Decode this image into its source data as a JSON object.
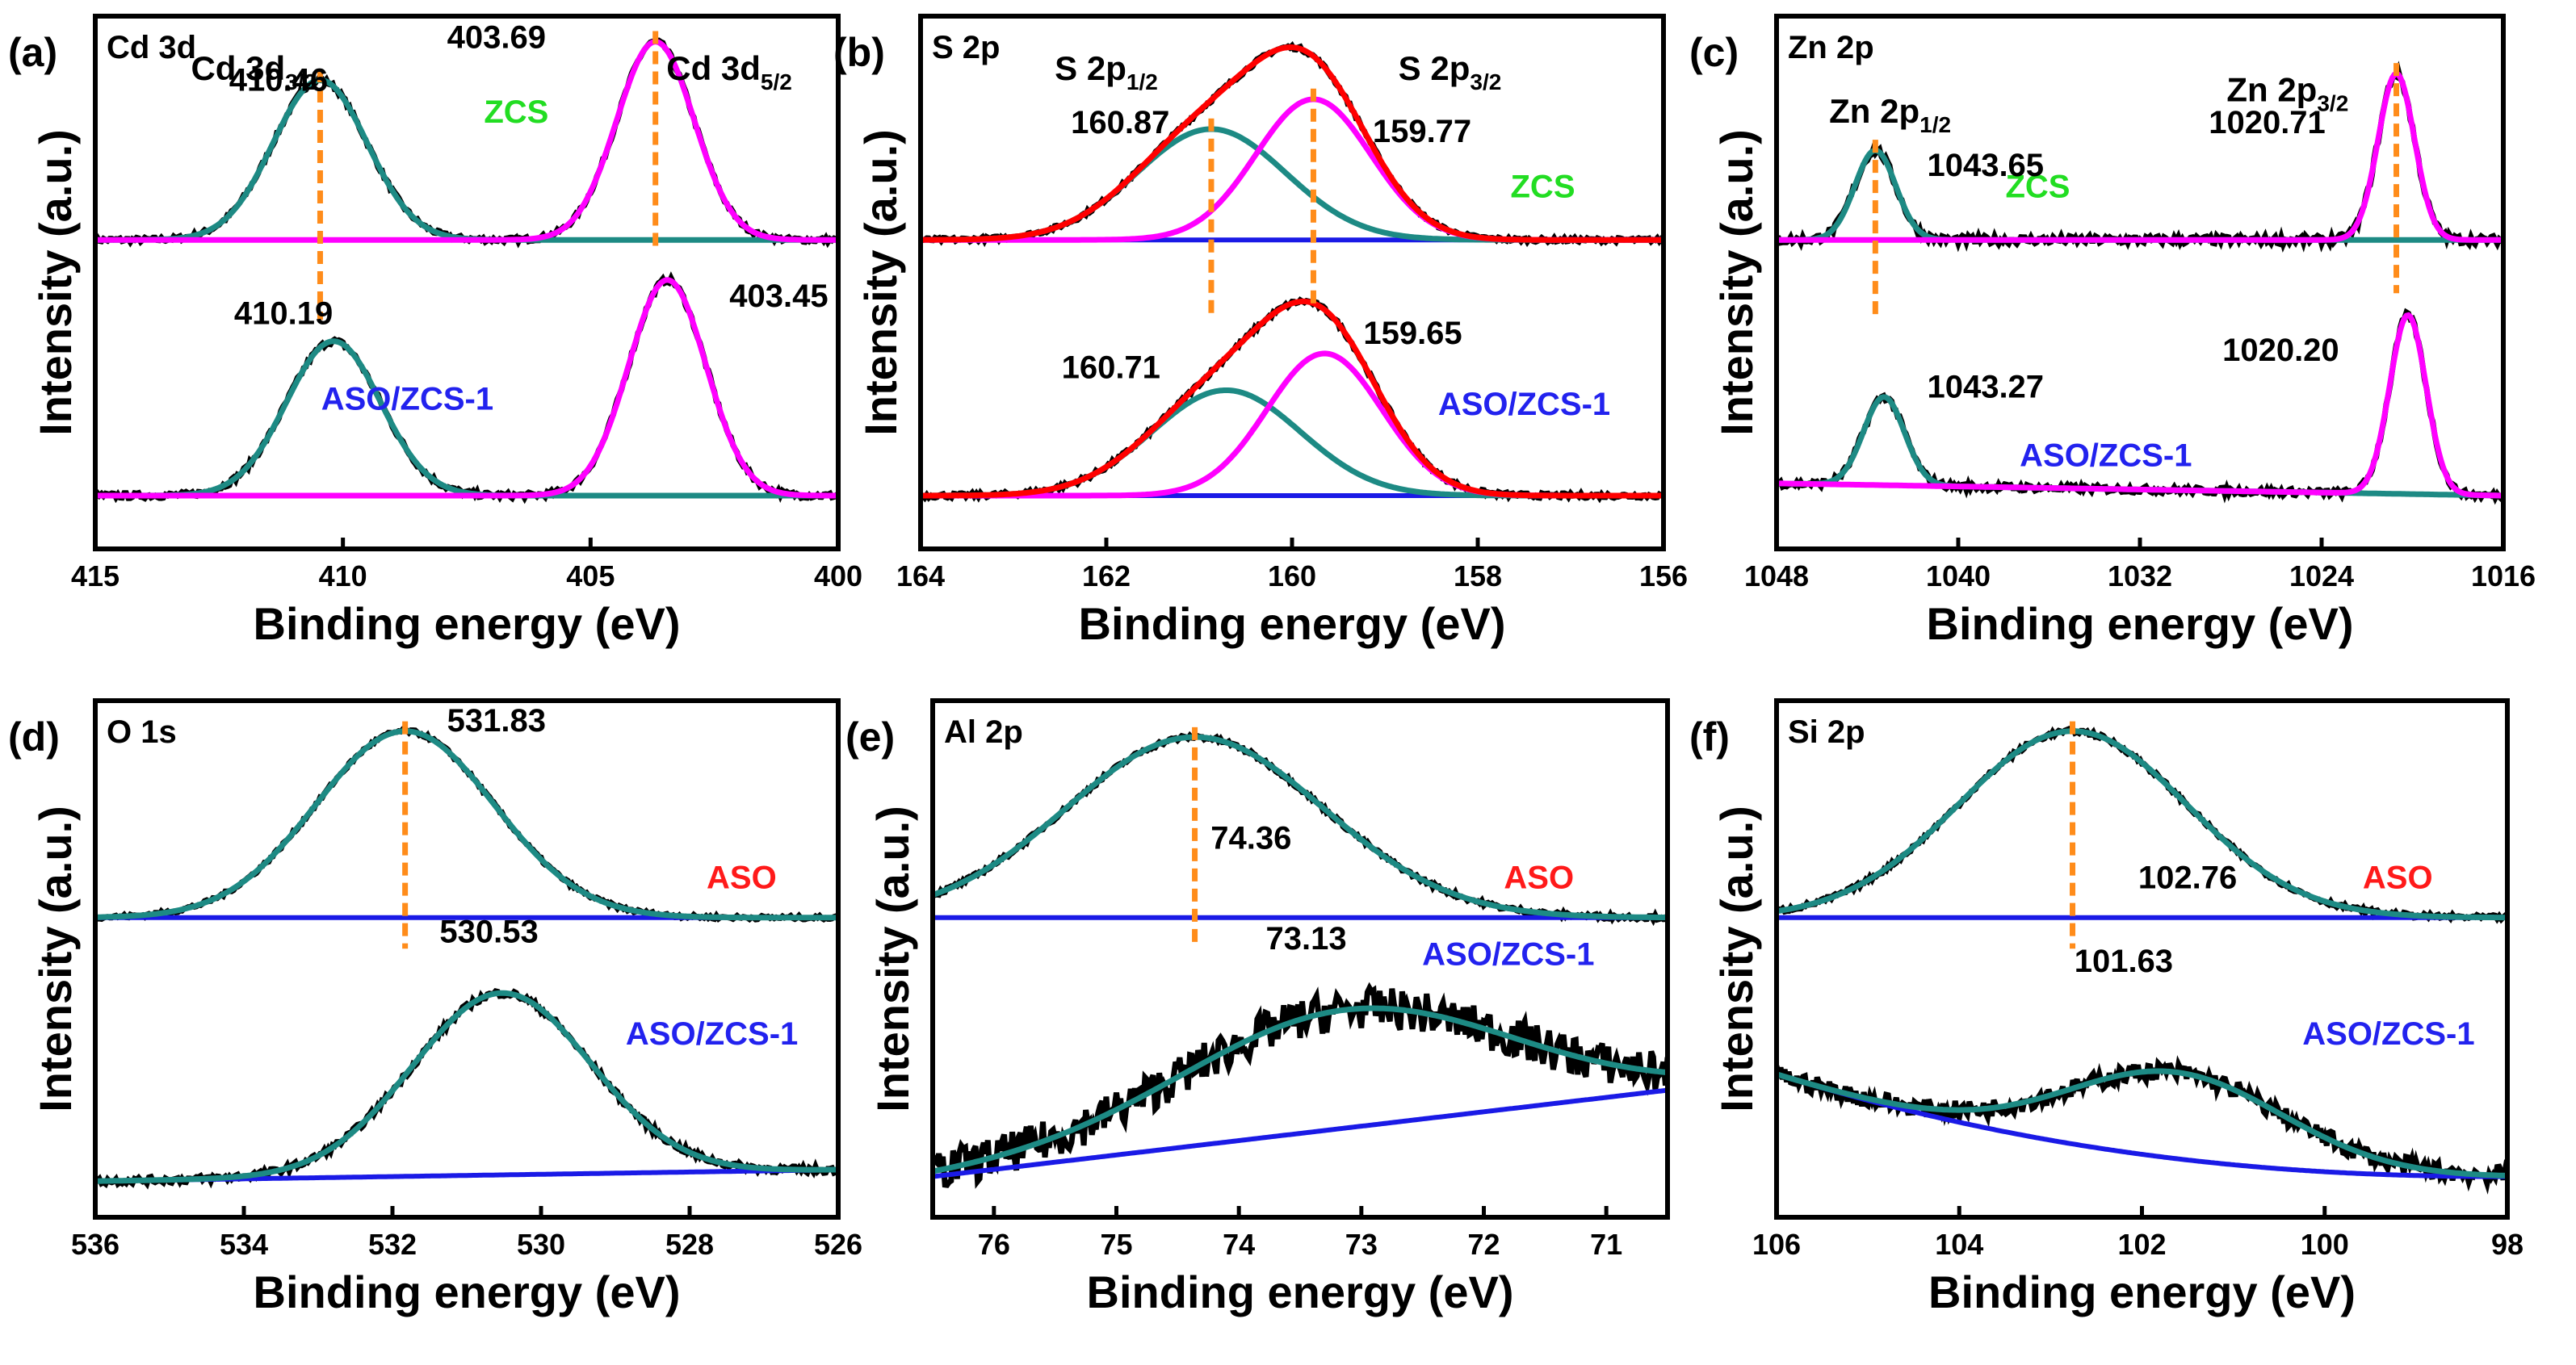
{
  "colors": {
    "raw": "#000000",
    "envelope": "#ff0000",
    "fit_teal": "#1d8a84",
    "fit_magenta": "#ff00ff",
    "baseline": "#1a1ae6",
    "marker": "#ff8c1a",
    "zcs_label": "#22dd22",
    "aso_label": "#ff1a1a",
    "asozcs_label": "#2222ee"
  },
  "chart_data": [
    {
      "type": "line",
      "panel_label": "(a)",
      "title": "Cd 3d",
      "xlabel": "Binding energy (eV)",
      "ylabel": "Intensity (a.u.)",
      "xlim": [
        415,
        400
      ],
      "xticks": [
        415,
        410,
        405,
        400
      ],
      "samples": [
        {
          "name": "ZCS",
          "label_color": "zcs",
          "label_x": 406.5,
          "label_level": 0.55,
          "baseline": [
            0.0,
            0.0
          ],
          "noise": 0.012,
          "peaks": [
            {
              "center": 410.46,
              "height": 0.75,
              "sigma": 0.95,
              "color": "teal"
            },
            {
              "center": 403.69,
              "height": 0.93,
              "sigma": 0.78,
              "color": "magenta"
            }
          ]
        },
        {
          "name": "ASO/ZCS-1",
          "label_color": "asozcs",
          "label_x": 408.7,
          "label_level": 0.35,
          "baseline": [
            0.0,
            0.0
          ],
          "noise": 0.012,
          "peaks": [
            {
              "center": 410.19,
              "height": 0.63,
              "sigma": 0.95,
              "color": "teal"
            },
            {
              "center": 403.45,
              "height": 0.88,
              "sigma": 0.78,
              "color": "magenta"
            }
          ]
        }
      ],
      "peak_labels": [
        {
          "text": "410.46",
          "x": 411.3,
          "level": 0.7,
          "sample": 0
        },
        {
          "text": "403.69",
          "x": 406.9,
          "level": 0.9,
          "sample": 0
        },
        {
          "text": "410.19",
          "x": 411.2,
          "level": 0.7,
          "sample": 1
        },
        {
          "text": "403.45",
          "x": 401.2,
          "level": 0.77,
          "sample": 1
        }
      ],
      "assignments": [
        {
          "main": "Cd 3d",
          "sub": "3/2",
          "x": 411.8
        },
        {
          "main": "Cd 3d",
          "sub": "5/2",
          "x": 402.2
        }
      ],
      "markers": [
        {
          "x": 410.46,
          "from": "top",
          "to": "mid_lower"
        },
        {
          "x": 403.69,
          "from": "top",
          "to": "zcs_base"
        }
      ]
    },
    {
      "type": "line",
      "panel_label": "(b)",
      "title": "S 2p",
      "xlabel": "Binding energy (eV)",
      "ylabel": "Intensity (a.u.)",
      "xlim": [
        164,
        156
      ],
      "xticks": [
        164,
        162,
        160,
        158,
        156
      ],
      "samples": [
        {
          "name": "ZCS",
          "label_color": "zcs",
          "label_x": 157.3,
          "label_level": 0.2,
          "envelope": true,
          "baseline": [
            0.0,
            0.0
          ],
          "noise": 0.01,
          "peaks": [
            {
              "center": 160.87,
              "height": 0.52,
              "sigma": 0.8,
              "color": "teal"
            },
            {
              "center": 159.77,
              "height": 0.66,
              "sigma": 0.62,
              "color": "magenta"
            }
          ]
        },
        {
          "name": "ASO/ZCS-1",
          "label_color": "asozcs",
          "label_x": 157.5,
          "label_level": 0.33,
          "envelope": true,
          "baseline": [
            0.0,
            0.0
          ],
          "noise": 0.01,
          "peaks": [
            {
              "center": 160.71,
              "height": 0.43,
              "sigma": 0.8,
              "color": "teal"
            },
            {
              "center": 159.65,
              "height": 0.58,
              "sigma": 0.62,
              "color": "magenta"
            }
          ]
        }
      ],
      "peak_labels": [
        {
          "text": "160.87",
          "x": 161.85,
          "level": 0.5,
          "sample": 0
        },
        {
          "text": "159.77",
          "x": 158.6,
          "level": 0.46,
          "sample": 0
        },
        {
          "text": "160.71",
          "x": 161.95,
          "level": 0.48,
          "sample": 1
        },
        {
          "text": "159.65",
          "x": 158.7,
          "level": 0.62,
          "sample": 1
        }
      ],
      "assignments": [
        {
          "main": "S 2p",
          "sub": "1/2",
          "x": 162.0
        },
        {
          "main": "S 2p",
          "sub": "3/2",
          "x": 158.3
        }
      ],
      "markers": [
        {
          "x": 160.87,
          "from": "teal_peak0",
          "to": "mid_lower"
        },
        {
          "x": 159.77,
          "from": "magenta_peak0",
          "to": "mid_lower_short"
        }
      ]
    },
    {
      "type": "line",
      "panel_label": "(c)",
      "title": "Zn 2p",
      "xlabel": "Binding energy (eV)",
      "ylabel": "Intensity (a.u.)",
      "xlim": [
        1048,
        1016
      ],
      "xticks": [
        1048,
        1040,
        1032,
        1024,
        1016
      ],
      "samples": [
        {
          "name": "ZCS",
          "label_color": "zcs",
          "label_x": 1036.5,
          "label_level": 0.2,
          "baseline": [
            0.0,
            0.0
          ],
          "noise": 0.02,
          "peaks": [
            {
              "center": 1043.65,
              "height": 0.42,
              "sigma": 0.9,
              "color": "teal"
            },
            {
              "center": 1020.71,
              "height": 0.78,
              "sigma": 0.8,
              "color": "magenta"
            }
          ]
        },
        {
          "name": "ASO/ZCS-1",
          "label_color": "asozcs",
          "label_x": 1033.5,
          "label_level": 0.12,
          "baseline": [
            0.05,
            0.0
          ],
          "noise": 0.014,
          "peaks": [
            {
              "center": 1043.27,
              "height": 0.36,
              "sigma": 0.9,
              "color": "teal"
            },
            {
              "center": 1020.2,
              "height": 0.73,
              "sigma": 0.8,
              "color": "magenta"
            }
          ]
        }
      ],
      "peak_labels": [
        {
          "text": "1043.65",
          "x": 1038.8,
          "level": 0.3,
          "sample": 0
        },
        {
          "text": "1020.71",
          "x": 1026.4,
          "level": 0.5,
          "sample": 0
        },
        {
          "text": "1043.27",
          "x": 1038.8,
          "level": 0.4,
          "sample": 1
        },
        {
          "text": "1020.20",
          "x": 1025.8,
          "level": 0.55,
          "sample": 1
        }
      ],
      "assignments": [
        {
          "main": "Zn 2p",
          "sub": "1/2",
          "x": 1043.0,
          "level_top": 0.7
        },
        {
          "main": "Zn 2p",
          "sub": "3/2",
          "x": 1025.5,
          "level_top": 0.9
        }
      ],
      "markers": [
        {
          "x": 1043.65,
          "from": "teal_peak0",
          "to": "mid_lower"
        },
        {
          "x": 1020.71,
          "from": "top",
          "to": "zcs_base_plus"
        }
      ]
    },
    {
      "type": "line",
      "panel_label": "(d)",
      "title": "O 1s",
      "xlabel": "Binding energy (eV)",
      "ylabel": "Intensity (a.u.)",
      "xlim": [
        536,
        526
      ],
      "xticks": [
        536,
        534,
        532,
        530,
        528,
        526
      ],
      "samples": [
        {
          "name": "ASO",
          "label_color": "aso",
          "label_x": 527.3,
          "label_level": 0.15,
          "baseline": [
            0.0,
            0.0
          ],
          "noise": 0.01,
          "peaks": [
            {
              "center": 531.83,
              "height": 0.95,
              "sigma": 1.2,
              "color": "teal"
            }
          ]
        },
        {
          "name": "ASO/ZCS-1",
          "label_color": "asozcs",
          "label_x": 527.7,
          "label_level": 0.6,
          "baseline": [
            0.0,
            0.05
          ],
          "noise": 0.015,
          "peaks": [
            {
              "center": 530.53,
              "height": 0.8,
              "sigma": 1.2,
              "color": "teal"
            }
          ]
        }
      ],
      "peak_labels": [
        {
          "text": "531.83",
          "x": 530.6,
          "level": 0.95,
          "sample": 0
        },
        {
          "text": "530.53",
          "x": 530.7,
          "level": 1.05,
          "sample": 1
        }
      ],
      "assignments": [],
      "markers": [
        {
          "x": 531.83,
          "from": "teal_peak0",
          "to": "aso_base_plus"
        }
      ]
    },
    {
      "type": "line",
      "panel_label": "(e)",
      "title": "Al 2p",
      "xlabel": "Binding energy (eV)",
      "ylabel": "Intensity (a.u.)",
      "xlim": [
        76.5,
        70.5
      ],
      "xticks": [
        76,
        75,
        74,
        73,
        72,
        71
      ],
      "samples": [
        {
          "name": "ASO",
          "label_color": "aso",
          "label_x": 71.55,
          "label_level": 0.15,
          "baseline": [
            0.0,
            0.0
          ],
          "noise": 0.012,
          "peaks": [
            {
              "center": 74.36,
              "height": 0.92,
              "sigma": 1.05,
              "color": "teal"
            }
          ]
        },
        {
          "name": "ASO/ZCS-1",
          "label_color": "asozcs",
          "label_x": 71.8,
          "label_level": 0.95,
          "baseline": [
            0.02,
            0.4
          ],
          "noise": 0.09,
          "peaks": [
            {
              "center": 73.13,
              "height": 0.52,
              "sigma": 1.35,
              "color": "teal"
            }
          ]
        }
      ],
      "peak_labels": [
        {
          "text": "74.36",
          "x": 73.9,
          "level": 0.35,
          "sample": 0
        },
        {
          "text": "73.13",
          "x": 73.45,
          "level": 1.02,
          "sample": 1
        }
      ],
      "assignments": [],
      "markers": [
        {
          "x": 74.36,
          "from": "teal_peak0",
          "to": "aso_base_plus"
        }
      ]
    },
    {
      "type": "line",
      "panel_label": "(f)",
      "title": "Si 2p",
      "xlabel": "Binding energy (eV)",
      "ylabel": "Intensity (a.u.)",
      "xlim": [
        106,
        98
      ],
      "xticks": [
        106,
        104,
        102,
        100,
        98
      ],
      "samples": [
        {
          "name": "ASO",
          "label_color": "aso",
          "label_x": 99.2,
          "label_level": 0.15,
          "baseline": [
            0.0,
            0.0
          ],
          "noise": 0.012,
          "peaks": [
            {
              "center": 102.76,
              "height": 0.95,
              "sigma": 1.25,
              "color": "teal"
            }
          ]
        },
        {
          "name": "ASO/ZCS-1",
          "label_color": "asozcs",
          "label_x": 99.3,
          "label_level": 0.6,
          "baseline": [
            0.45,
            0.02
          ],
          "baseline_curve": true,
          "noise": 0.04,
          "peaks": [
            {
              "center": 101.63,
              "height": 0.38,
              "sigma": 1.2,
              "color": "teal"
            }
          ]
        }
      ],
      "peak_labels": [
        {
          "text": "102.76",
          "x": 101.5,
          "level": 0.15,
          "sample": 0
        },
        {
          "text": "101.63",
          "x": 102.2,
          "level": 0.92,
          "sample": 1
        }
      ],
      "assignments": [],
      "markers": [
        {
          "x": 102.76,
          "from": "teal_peak0",
          "to": "aso_base_plus"
        }
      ]
    }
  ]
}
